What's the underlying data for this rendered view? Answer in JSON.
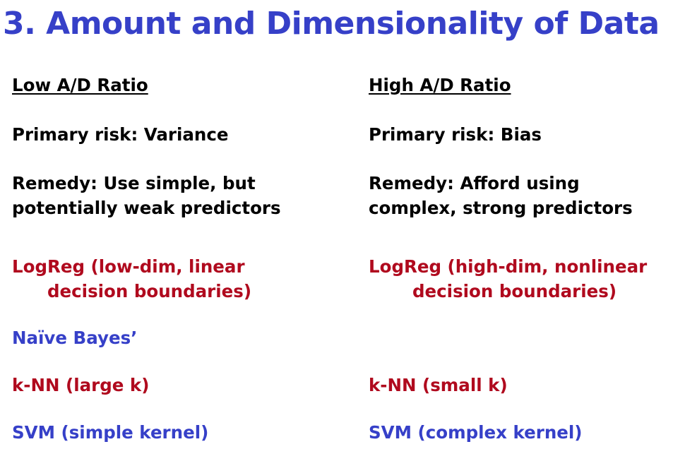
{
  "title": "3. Amount and Dimensionality of Data",
  "left": {
    "heading": "Low A/D Ratio",
    "risk": "Primary risk: Variance",
    "remedy_line1": "Remedy: Use simple, but",
    "remedy_line2": "potentially weak predictors",
    "logreg_line1": "LogReg (low-dim, linear",
    "logreg_line2": "decision boundaries)",
    "naive_bayes": "Naïve Bayes’",
    "knn": "k-NN (large k)",
    "svm": "SVM (simple kernel)"
  },
  "right": {
    "heading": "High A/D Ratio",
    "risk": "Primary risk: Bias",
    "remedy_line1": "Remedy: Afford using",
    "remedy_line2": "complex, strong predictors",
    "logreg_line1": "LogReg (high-dim, nonlinear",
    "logreg_line2": "decision boundaries)",
    "knn": "k-NN (small k)",
    "svm": "SVM (complex kernel)"
  },
  "colors": {
    "title_blue": "#3640c8",
    "model_red": "#b00a1e",
    "text_black": "#000000"
  }
}
